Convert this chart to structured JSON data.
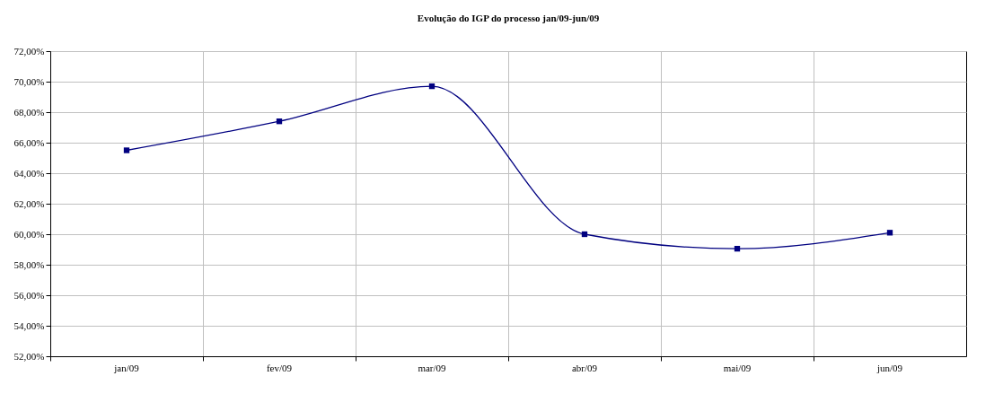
{
  "chart_data": {
    "type": "line",
    "title": "Evolução do IGP do processo jan/09-jun/09",
    "categories": [
      "jan/09",
      "fev/09",
      "mar/09",
      "abr/09",
      "mai/09",
      "jun/09"
    ],
    "series": [
      {
        "color": "#000080",
        "values": [
          65.5,
          67.4,
          69.7,
          60.0,
          59.05,
          60.1
        ]
      }
    ],
    "ylim": [
      52,
      72
    ],
    "yticks": [
      {
        "value": 52,
        "label": "52,00%"
      },
      {
        "value": 54,
        "label": "54,00%"
      },
      {
        "value": 56,
        "label": "56,00%"
      },
      {
        "value": 58,
        "label": "58,00%"
      },
      {
        "value": 60,
        "label": "60,00%"
      },
      {
        "value": 62,
        "label": "62,00%"
      },
      {
        "value": 64,
        "label": "64,00%"
      },
      {
        "value": 66,
        "label": "66,00%"
      },
      {
        "value": 68,
        "label": "68,00%"
      },
      {
        "value": 70,
        "label": "70,00%"
      },
      {
        "value": 72,
        "label": "72,00%"
      }
    ],
    "grid": true,
    "marker": "square",
    "line_style": "solid"
  }
}
